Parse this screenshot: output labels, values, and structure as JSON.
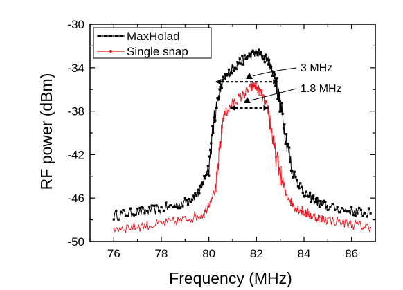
{
  "chart_data": {
    "type": "line",
    "title": "",
    "xlabel": "Frequency (MHz)",
    "ylabel": "RF power (dBm)",
    "xlim": [
      75,
      87
    ],
    "ylim": [
      -50,
      -30
    ],
    "xticks": [
      76,
      78,
      80,
      82,
      84,
      86
    ],
    "yticks": [
      -50,
      -46,
      -42,
      -38,
      -34,
      -30
    ],
    "grid": false,
    "legend_position": "top-left",
    "series": [
      {
        "name": "MaxHolad",
        "color": "#000000",
        "marker": "square",
        "x": [
          76.0,
          77.0,
          78.0,
          79.0,
          79.6,
          80.0,
          80.3,
          80.6,
          81.0,
          81.5,
          82.0,
          82.5,
          82.8,
          83.1,
          83.5,
          84.0,
          84.5,
          85.0,
          86.0,
          86.8
        ],
        "y": [
          -47.6,
          -47.3,
          -47.0,
          -46.4,
          -45.5,
          -43.0,
          -37.5,
          -35.2,
          -34.0,
          -33.2,
          -32.6,
          -33.3,
          -35.0,
          -38.5,
          -43.5,
          -45.5,
          -46.3,
          -46.8,
          -47.2,
          -47.4
        ]
      },
      {
        "name": "Single snap",
        "color": "#e8141e",
        "marker": "dot",
        "x": [
          76.0,
          77.0,
          78.0,
          79.0,
          79.8,
          80.3,
          80.6,
          81.0,
          81.5,
          81.9,
          82.2,
          82.5,
          82.8,
          83.2,
          83.6,
          84.0,
          84.5,
          85.0,
          86.0,
          86.8
        ],
        "y": [
          -48.8,
          -48.6,
          -48.4,
          -48.0,
          -47.4,
          -45.0,
          -38.5,
          -37.3,
          -36.4,
          -35.6,
          -36.3,
          -38.0,
          -42.0,
          -45.5,
          -46.8,
          -47.3,
          -47.8,
          -48.0,
          -48.4,
          -48.7
        ]
      }
    ],
    "annotations": [
      {
        "text": "3 MHz",
        "x_from": 80.3,
        "x_to": 82.9,
        "y": -35.3
      },
      {
        "text": "1.8 MHz",
        "x_from": 80.9,
        "x_to": 82.5,
        "y": -37.7
      }
    ]
  }
}
